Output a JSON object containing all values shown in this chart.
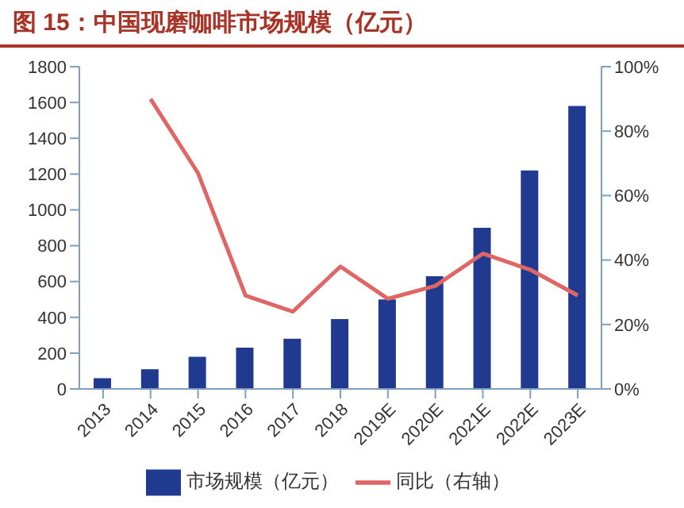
{
  "chart_data": {
    "type": "bar",
    "title": "图 15：中国现磨咖啡市场规模（亿元）",
    "categories": [
      "2013",
      "2014",
      "2015",
      "2016",
      "2017",
      "2018",
      "2019E",
      "2020E",
      "2021E",
      "2022E",
      "2023E"
    ],
    "series": [
      {
        "name": "市场规模（亿元）",
        "color": "#1f3a8f",
        "values": [
          60,
          110,
          180,
          230,
          280,
          390,
          500,
          630,
          900,
          1220,
          1580
        ]
      },
      {
        "name": "同比（右轴）",
        "type": "line",
        "axis": "y2",
        "color": "#e06666",
        "values": [
          null,
          90,
          67,
          29,
          24,
          38,
          28,
          32,
          42,
          37,
          29
        ]
      }
    ],
    "ylim": [
      0,
      1800
    ],
    "yticks": [
      0,
      200,
      400,
      600,
      800,
      1000,
      1200,
      1400,
      1600,
      1800
    ],
    "y2lim": [
      0,
      100
    ],
    "y2ticks": [
      {
        "value": 0,
        "label": "0%"
      },
      {
        "value": 20,
        "label": "20%"
      },
      {
        "value": 40,
        "label": "40%"
      },
      {
        "value": 60,
        "label": "60%"
      },
      {
        "value": 80,
        "label": "80%"
      },
      {
        "value": 100,
        "label": "100%"
      }
    ],
    "legend": "bottom",
    "grid": false,
    "marker": "none"
  }
}
